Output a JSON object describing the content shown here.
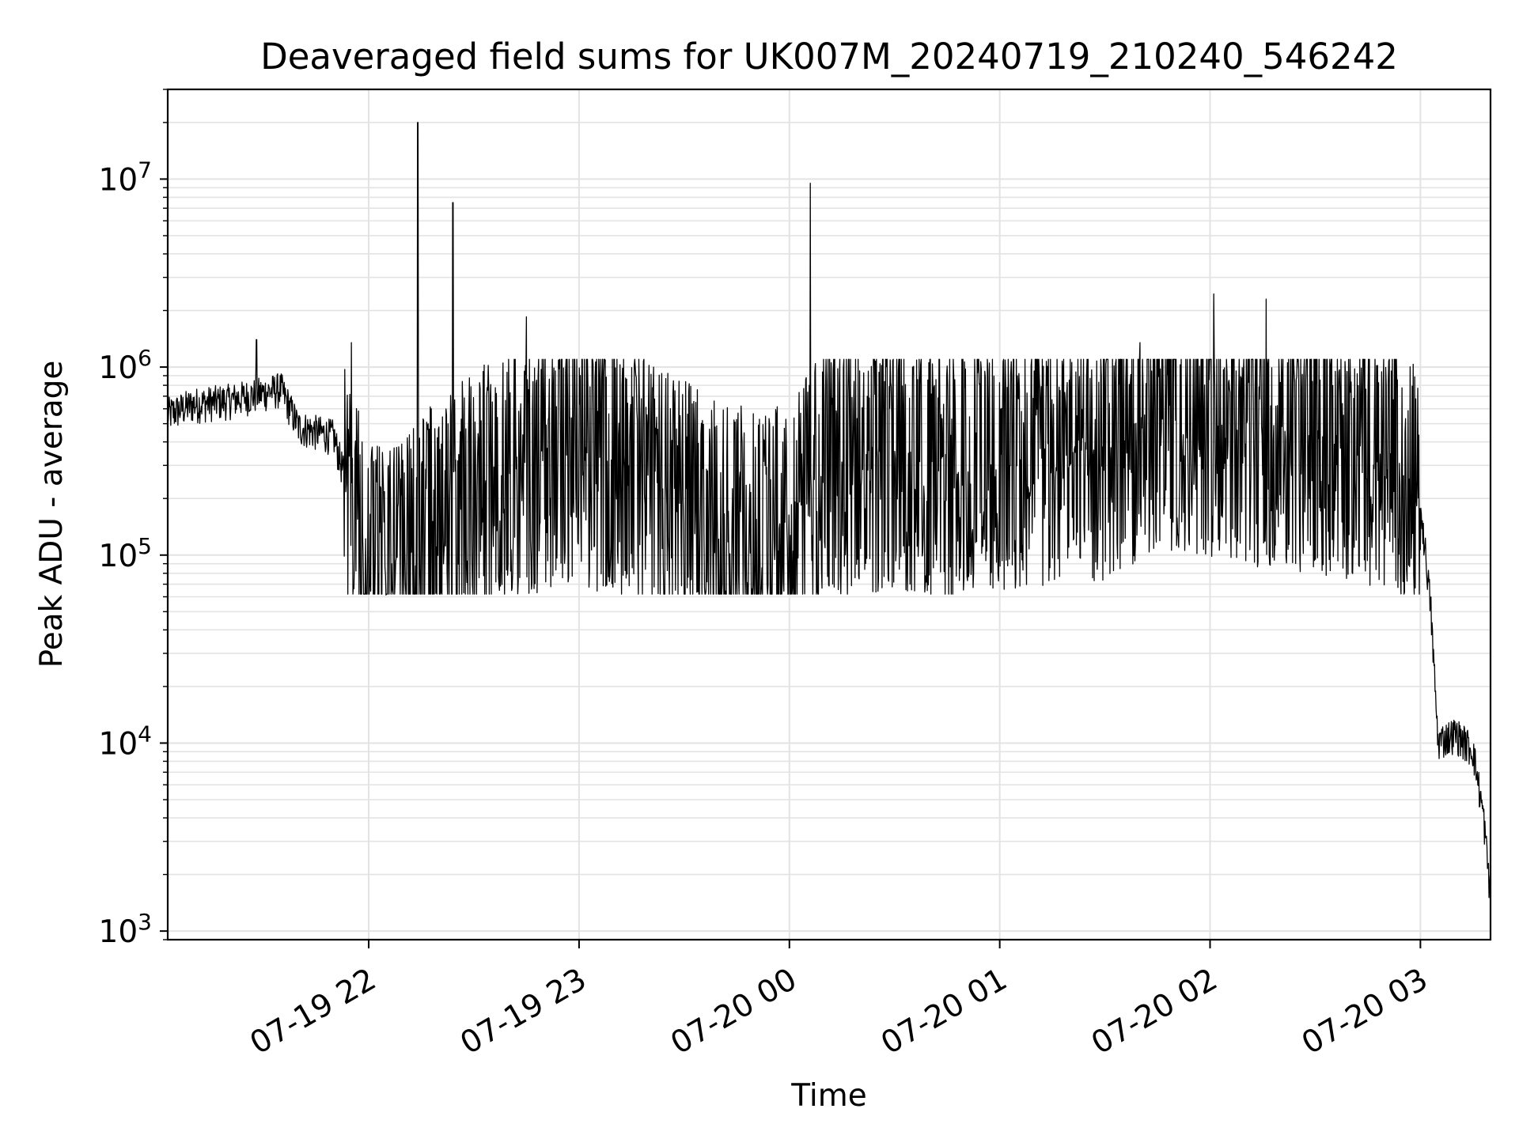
{
  "chart_data": {
    "type": "line",
    "title": "Deaveraged field sums for UK007M_20240719_210240_546242",
    "xlabel": "Time",
    "ylabel": "Peak ADU - average",
    "yscale": "log",
    "ylim": [
      900,
      30000000
    ],
    "xlim": [
      "2024-07-19 21:02:40",
      "2024-07-20 03:20:00"
    ],
    "grid": true,
    "line_color": "#000000",
    "x_ticks": [
      {
        "label": "07-19 22",
        "value": "2024-07-19 22:00"
      },
      {
        "label": "07-19 23",
        "value": "2024-07-19 23:00"
      },
      {
        "label": "07-20 00",
        "value": "2024-07-20 00:00"
      },
      {
        "label": "07-20 01",
        "value": "2024-07-20 01:00"
      },
      {
        "label": "07-20 02",
        "value": "2024-07-20 02:00"
      },
      {
        "label": "07-20 03",
        "value": "2024-07-20 03:00"
      }
    ],
    "y_ticks": [
      {
        "base": "10",
        "exp": "3",
        "value": 1000
      },
      {
        "base": "10",
        "exp": "4",
        "value": 10000
      },
      {
        "base": "10",
        "exp": "5",
        "value": 100000
      },
      {
        "base": "10",
        "exp": "6",
        "value": 1000000
      },
      {
        "base": "10",
        "exp": "7",
        "value": 10000000
      }
    ],
    "series": [
      {
        "points": [
          [
            "2024-07-19 21:02:40",
            550000
          ],
          [
            "2024-07-19 21:10",
            620000
          ],
          [
            "2024-07-19 21:20",
            650000
          ],
          [
            "2024-07-19 21:28",
            700000
          ],
          [
            "2024-07-19 21:35",
            750000
          ],
          [
            "2024-07-19 21:40",
            470000
          ],
          [
            "2024-07-19 21:50",
            420000
          ],
          [
            "2024-07-19 21:53",
            260000
          ],
          [
            "2024-07-19 21:55",
            150000
          ],
          [
            "2024-07-19 21:58",
            120000
          ],
          [
            "2024-07-19 22:00",
            80000
          ],
          [
            "2024-07-19 22:10",
            85000
          ],
          [
            "2024-07-19 22:20",
            150000
          ],
          [
            "2024-07-19 22:40",
            260000
          ],
          [
            "2024-07-19 23:00",
            320000
          ],
          [
            "2024-07-19 23:20",
            230000
          ],
          [
            "2024-07-19 23:40",
            140000
          ],
          [
            "2024-07-19 23:55",
            120000
          ],
          [
            "2024-07-20 00:10",
            270000
          ],
          [
            "2024-07-20 00:30",
            300000
          ],
          [
            "2024-07-20 00:50",
            260000
          ],
          [
            "2024-07-20 01:10",
            310000
          ],
          [
            "2024-07-20 01:30",
            330000
          ],
          [
            "2024-07-20 01:45",
            500000
          ],
          [
            "2024-07-20 02:00",
            430000
          ],
          [
            "2024-07-20 02:20",
            380000
          ],
          [
            "2024-07-20 02:40",
            330000
          ],
          [
            "2024-07-20 02:55",
            280000
          ],
          [
            "2024-07-20 03:00",
            180000
          ],
          [
            "2024-07-20 03:02",
            80000
          ],
          [
            "2024-07-20 03:03",
            50000
          ],
          [
            "2024-07-20 03:05",
            10000
          ],
          [
            "2024-07-20 03:10",
            11000
          ],
          [
            "2024-07-20 03:15",
            9000
          ],
          [
            "2024-07-20 03:18",
            4000
          ],
          [
            "2024-07-20 03:20",
            1500
          ]
        ],
        "peaks": [
          [
            "2024-07-19 21:28",
            1400000
          ],
          [
            "2024-07-19 21:55",
            1350000
          ],
          [
            "2024-07-19 22:14",
            20000000
          ],
          [
            "2024-07-19 22:24",
            7500000
          ],
          [
            "2024-07-19 22:45",
            1850000
          ],
          [
            "2024-07-20 00:06",
            9500000
          ],
          [
            "2024-07-20 02:01",
            2450000
          ],
          [
            "2024-07-20 02:16",
            2300000
          ],
          [
            "2024-07-20 01:40",
            1350000
          ]
        ],
        "upper_envelope": 1100000,
        "lower_envelope": 62000
      }
    ]
  }
}
